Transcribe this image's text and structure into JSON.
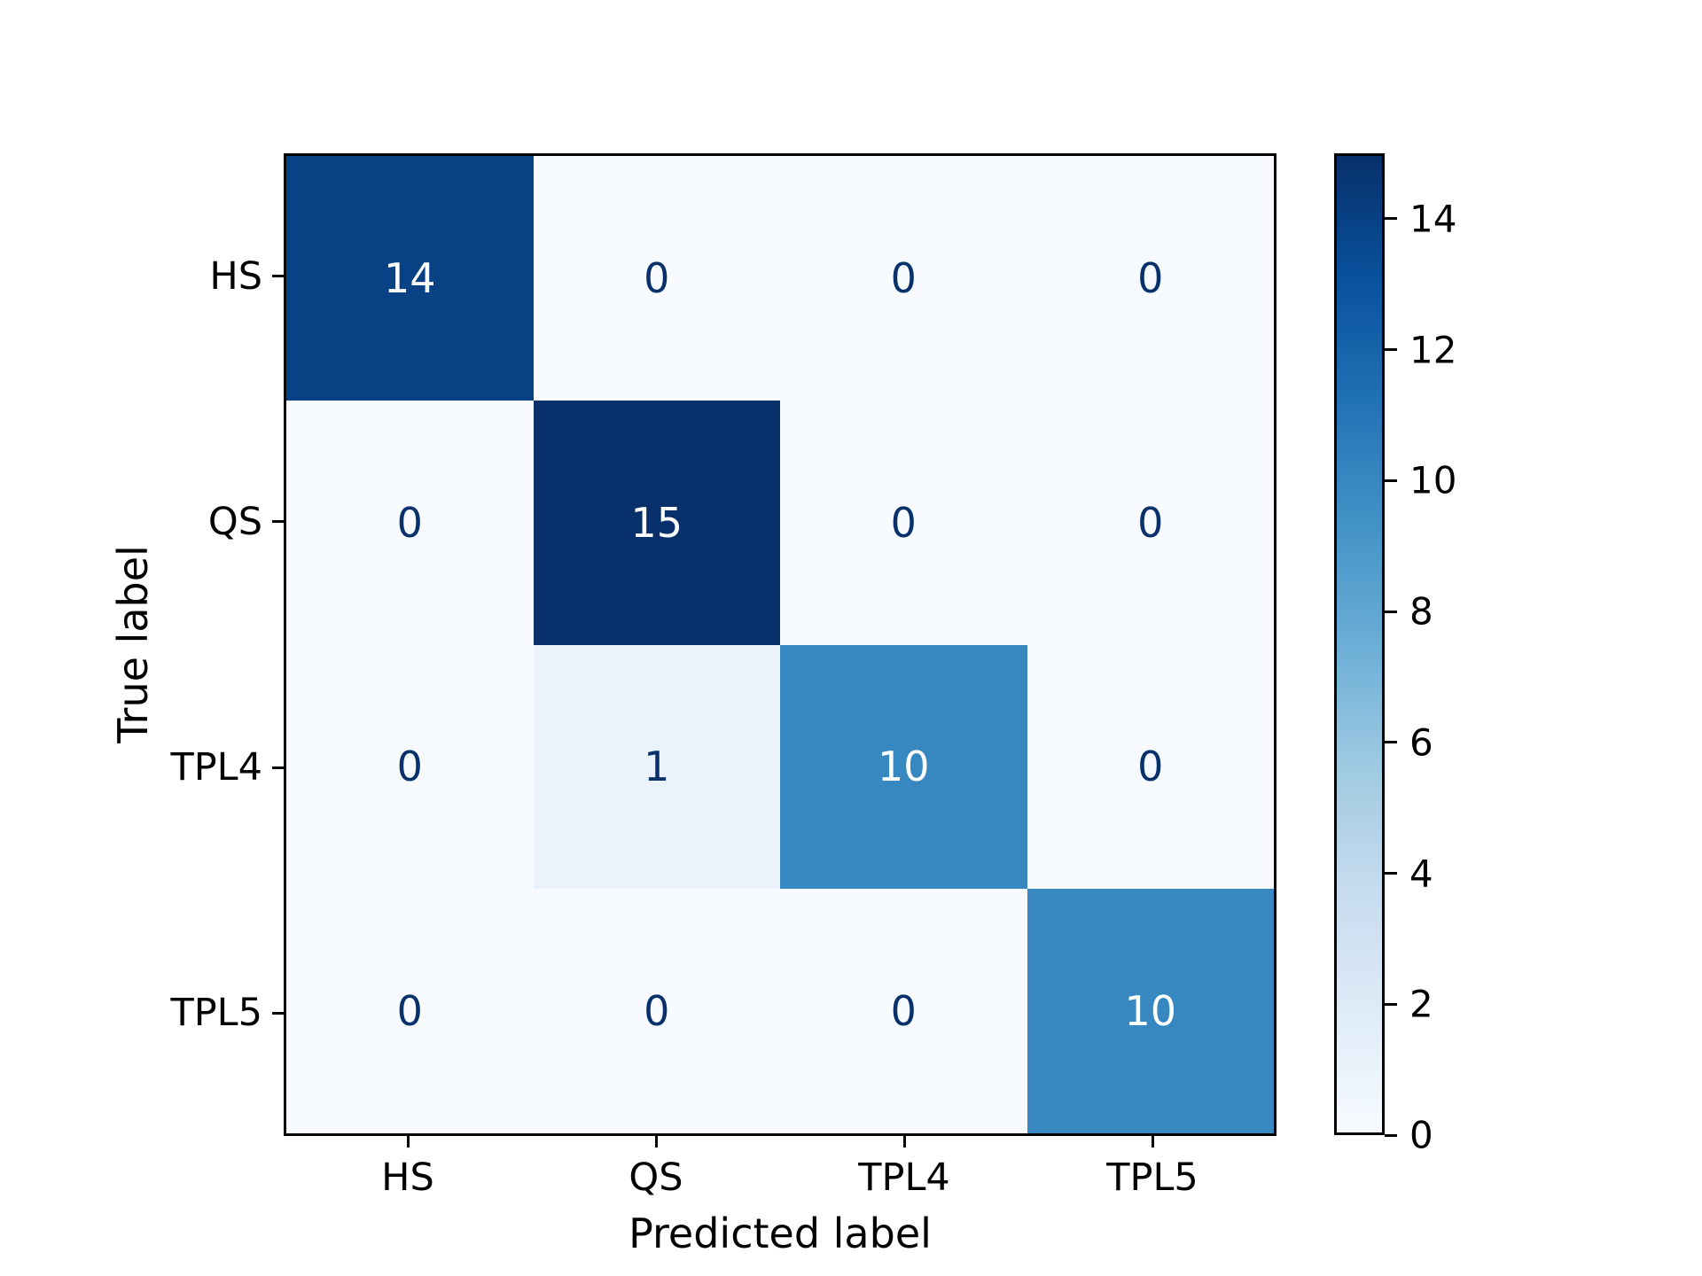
{
  "figure": {
    "background": "#ffffff",
    "text_color": "#000000"
  },
  "chart_data": {
    "type": "heatmap",
    "subtype": "confusion-matrix",
    "title": "",
    "xlabel": "Predicted label",
    "ylabel": "True label",
    "x_tick_labels": [
      "HS",
      "QS",
      "TPL4",
      "TPL5"
    ],
    "y_tick_labels": [
      "HS",
      "QS",
      "TPL4",
      "TPL5"
    ],
    "matrix": [
      [
        14,
        0,
        0,
        0
      ],
      [
        0,
        15,
        0,
        0
      ],
      [
        0,
        1,
        10,
        0
      ],
      [
        0,
        0,
        0,
        10
      ]
    ],
    "vmin": 0,
    "vmax": 15,
    "colormap": "Blues",
    "colormap_stops": [
      "#f7fbff",
      "#deebf7",
      "#c6dbef",
      "#9ecae1",
      "#6baed6",
      "#4292c6",
      "#2171b5",
      "#08519c",
      "#08306b"
    ],
    "colorbar_ticks": [
      0,
      2,
      4,
      6,
      8,
      10,
      12,
      14
    ],
    "colorbar_position": "right",
    "cell_text_color_light": "#ffffff",
    "cell_text_color_dark": "#08306b",
    "grid": false
  }
}
